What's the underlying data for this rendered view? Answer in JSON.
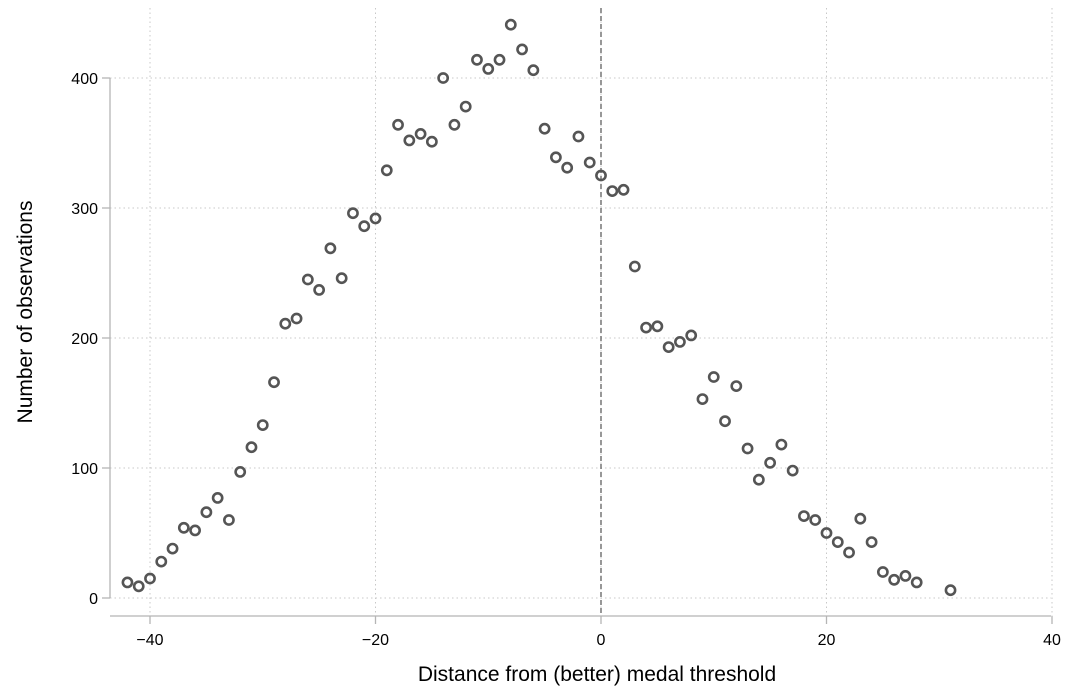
{
  "chart_data": {
    "type": "scatter",
    "xlabel": "Distance from (better) medal threshold",
    "ylabel": "Number of observations",
    "xlim": [
      -42,
      40
    ],
    "ylim": [
      0,
      442
    ],
    "xticks": [
      -40,
      -20,
      0,
      20,
      40
    ],
    "xtick_labels": [
      "−40",
      "−20",
      "0",
      "20",
      "40"
    ],
    "yticks": [
      0,
      100,
      200,
      300,
      400
    ],
    "ytick_labels": [
      "0",
      "100",
      "200",
      "300",
      "400"
    ],
    "grid": true,
    "reference_line_x": 0,
    "marker_style": "hollow circle",
    "marker_color": "#555555",
    "points": [
      [
        -42,
        12
      ],
      [
        -41,
        9
      ],
      [
        -40,
        15
      ],
      [
        -39,
        28
      ],
      [
        -38,
        38
      ],
      [
        -37,
        54
      ],
      [
        -36,
        52
      ],
      [
        -35,
        66
      ],
      [
        -34,
        77
      ],
      [
        -33,
        60
      ],
      [
        -32,
        97
      ],
      [
        -31,
        116
      ],
      [
        -30,
        133
      ],
      [
        -29,
        166
      ],
      [
        -28,
        211
      ],
      [
        -27,
        215
      ],
      [
        -26,
        245
      ],
      [
        -25,
        237
      ],
      [
        -24,
        269
      ],
      [
        -23,
        246
      ],
      [
        -22,
        296
      ],
      [
        -21,
        286
      ],
      [
        -20,
        292
      ],
      [
        -19,
        329
      ],
      [
        -18,
        364
      ],
      [
        -17,
        352
      ],
      [
        -16,
        357
      ],
      [
        -15,
        351
      ],
      [
        -14,
        400
      ],
      [
        -13,
        364
      ],
      [
        -12,
        378
      ],
      [
        -11,
        414
      ],
      [
        -10,
        407
      ],
      [
        -9,
        414
      ],
      [
        -8,
        441
      ],
      [
        -7,
        422
      ],
      [
        -6,
        406
      ],
      [
        -5,
        361
      ],
      [
        -4,
        339
      ],
      [
        -3,
        331
      ],
      [
        -2,
        355
      ],
      [
        -1,
        335
      ],
      [
        0,
        325
      ],
      [
        1,
        313
      ],
      [
        2,
        314
      ],
      [
        3,
        255
      ],
      [
        4,
        208
      ],
      [
        5,
        209
      ],
      [
        6,
        193
      ],
      [
        7,
        197
      ],
      [
        8,
        202
      ],
      [
        9,
        153
      ],
      [
        10,
        170
      ],
      [
        11,
        136
      ],
      [
        12,
        163
      ],
      [
        13,
        115
      ],
      [
        14,
        91
      ],
      [
        15,
        104
      ],
      [
        16,
        118
      ],
      [
        17,
        98
      ],
      [
        18,
        63
      ],
      [
        19,
        60
      ],
      [
        20,
        50
      ],
      [
        21,
        43
      ],
      [
        22,
        35
      ],
      [
        23,
        61
      ],
      [
        24,
        43
      ],
      [
        25,
        20
      ],
      [
        26,
        14
      ],
      [
        27,
        17
      ],
      [
        28,
        12
      ],
      [
        31,
        6
      ]
    ]
  }
}
